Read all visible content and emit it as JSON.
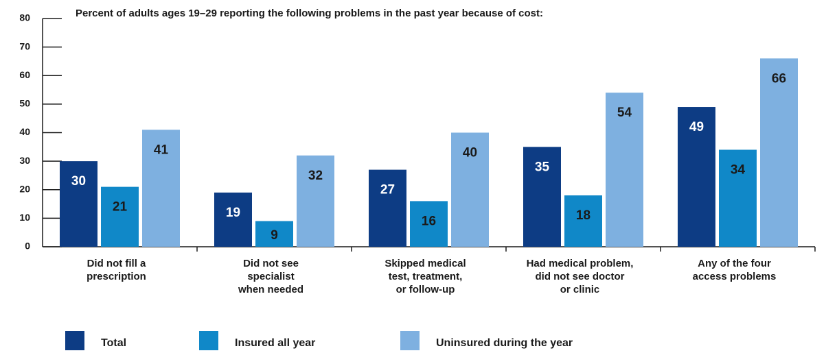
{
  "chart_data": {
    "type": "bar",
    "title": "Percent of adults ages 19–29 reporting the following problems in the past year because of cost:",
    "categories": [
      "Did not fill a\nprescription",
      "Did not see\nspecialist\nwhen needed",
      "Skipped medical\ntest, treatment,\nor follow-up",
      "Had medical problem,\ndid not see doctor\nor clinic",
      "Any of the four\naccess problems"
    ],
    "series": [
      {
        "name": "Total",
        "color": "#0d3c84",
        "label_color": "#ffffff",
        "values": [
          30,
          19,
          27,
          35,
          49
        ]
      },
      {
        "name": "Insured all year",
        "color": "#1088c8",
        "label_color": "#1a1a1a",
        "values": [
          21,
          9,
          16,
          18,
          34
        ]
      },
      {
        "name": "Uninsured during the year",
        "color": "#7eb0e0",
        "label_color": "#1a1a1a",
        "values": [
          41,
          32,
          40,
          54,
          66
        ]
      }
    ],
    "ylim": [
      0,
      80
    ],
    "yticks": [
      0,
      10,
      20,
      30,
      40,
      50,
      60,
      70,
      80
    ]
  }
}
